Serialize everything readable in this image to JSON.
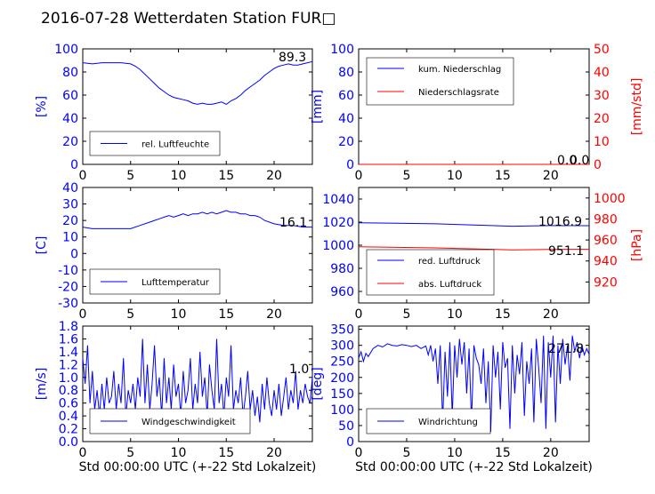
{
  "title": "2016-07-28 Wetterdaten Station FUR□",
  "colors": {
    "primary": "#0000ff",
    "secondary": "#ff0000",
    "black": "#000000"
  },
  "chart_data": [
    {
      "id": "humidity",
      "type": "line",
      "x_ticks": [
        0,
        5,
        10,
        15,
        20
      ],
      "xlim": [
        0,
        24
      ],
      "ylabel": "[%]",
      "ylim": [
        0,
        100
      ],
      "yticks": [
        0,
        20,
        40,
        60,
        80,
        100
      ],
      "grid": false,
      "legend": "bottom-left",
      "series": [
        {
          "name": "rel. Luftfeuchte",
          "color": "#0000ff",
          "x": [
            0,
            1,
            2,
            3,
            4,
            5,
            5.5,
            6,
            6.5,
            7,
            7.5,
            8,
            8.5,
            9,
            9.5,
            10,
            10.5,
            11,
            11.5,
            12,
            12.5,
            13,
            13.5,
            14,
            14.5,
            15,
            15.5,
            16,
            16.5,
            17,
            17.5,
            18,
            18.5,
            19,
            19.5,
            20,
            20.5,
            21,
            21.5,
            22,
            22.5,
            23,
            23.5,
            24
          ],
          "y": [
            88,
            87,
            88,
            88,
            88,
            87,
            85,
            82,
            78,
            74,
            70,
            66,
            63,
            60,
            58,
            57,
            56,
            55,
            53,
            52,
            53,
            52,
            52,
            53,
            54,
            52,
            55,
            57,
            60,
            64,
            67,
            70,
            73,
            77,
            80,
            83,
            85,
            86,
            87,
            86,
            86,
            87,
            88,
            89
          ]
        }
      ],
      "value_label": "89.3"
    },
    {
      "id": "precipitation",
      "type": "line",
      "x_ticks": [
        0,
        5,
        10,
        15,
        20
      ],
      "xlim": [
        0,
        24
      ],
      "ylabel": "[mm]",
      "ylim": [
        0,
        100
      ],
      "yticks": [
        0,
        20,
        40,
        60,
        80,
        100
      ],
      "ylabel_right": "[mm/std]",
      "ylim_right": [
        0,
        50
      ],
      "yticks_right": [
        0,
        10,
        20,
        30,
        40,
        50
      ],
      "grid": false,
      "legend": "top-left",
      "series": [
        {
          "name": "kum. Niederschlag",
          "color": "#0000ff",
          "axis": "left",
          "x": [
            0,
            24
          ],
          "y": [
            0,
            0
          ]
        },
        {
          "name": "Niederschlagsrate",
          "color": "#ff0000",
          "axis": "right",
          "x": [
            0,
            24
          ],
          "y": [
            0,
            0
          ]
        }
      ],
      "value_label": "0.0",
      "value_label_2": "0.0"
    },
    {
      "id": "temperature",
      "type": "line",
      "x_ticks": [
        0,
        5,
        10,
        15,
        20
      ],
      "xlim": [
        0,
        24
      ],
      "ylabel": "[C]",
      "ylim": [
        -30,
        40
      ],
      "yticks": [
        -30,
        -20,
        -10,
        0,
        10,
        20,
        30,
        40
      ],
      "grid": false,
      "legend": "bottom-left",
      "series": [
        {
          "name": "Lufttemperatur",
          "color": "#0000ff",
          "x": [
            0,
            1,
            2,
            3,
            4,
            5,
            6,
            7,
            7.5,
            8,
            8.5,
            9,
            9.5,
            10,
            10.5,
            11,
            11.5,
            12,
            12.5,
            13,
            13.5,
            14,
            14.5,
            15,
            15.5,
            16,
            16.5,
            17,
            17.5,
            18,
            18.5,
            19,
            20,
            21,
            22,
            23,
            24
          ],
          "y": [
            16,
            15,
            15,
            15,
            15,
            15,
            17,
            19,
            20,
            21,
            22,
            23,
            22,
            23,
            24,
            23,
            24,
            24,
            25,
            24,
            25,
            24,
            25,
            26,
            25,
            25,
            24,
            24,
            23,
            23,
            22,
            20,
            18,
            17,
            17,
            16,
            16
          ]
        }
      ],
      "value_label": "16.1"
    },
    {
      "id": "pressure",
      "type": "line",
      "x_ticks": [
        0,
        5,
        10,
        15,
        20
      ],
      "xlim": [
        0,
        24
      ],
      "ylim": [
        950,
        1050
      ],
      "yticks": [
        960,
        980,
        1000,
        1020,
        1040
      ],
      "ylabel_right": "[hPa]",
      "ylim_right": [
        900,
        1010
      ],
      "yticks_right": [
        920,
        940,
        960,
        980,
        1000
      ],
      "grid": false,
      "legend": "bottom-left",
      "series": [
        {
          "name": "red. Luftdruck",
          "color": "#0000ff",
          "axis": "left",
          "x": [
            0,
            4,
            8,
            12,
            16,
            20,
            24
          ],
          "y": [
            1019.5,
            1019,
            1018.5,
            1017.5,
            1016.5,
            1017,
            1016.9
          ]
        },
        {
          "name": "abs. Luftdruck",
          "color": "#ff0000",
          "axis": "right",
          "x": [
            0,
            4,
            8,
            12,
            16,
            20,
            24
          ],
          "y": [
            953.5,
            953,
            952.5,
            951.5,
            950.5,
            951,
            951.1
          ]
        }
      ],
      "value_label": "1016.9",
      "value_label_2": "951.1"
    },
    {
      "id": "wind-speed",
      "type": "line",
      "x_ticks": [
        0,
        5,
        10,
        15,
        20
      ],
      "xlim": [
        0,
        24
      ],
      "xlabel": "Std 00:00:00 UTC (+-22 Std Lokalzeit)",
      "ylabel": "[m/s]",
      "ylim": [
        0,
        1.8
      ],
      "yticks": [
        "0.0",
        "0.2",
        "0.4",
        "0.6",
        "0.8",
        "1.0",
        "1.2",
        "1.4",
        "1.6",
        "1.8"
      ],
      "grid": false,
      "legend": "bottom-left",
      "series": [
        {
          "name": "Windgeschwindigkeit",
          "color": "#0000ff",
          "x": [
            0,
            0.25,
            0.5,
            0.75,
            1,
            1.25,
            1.5,
            1.75,
            2,
            2.25,
            2.5,
            2.75,
            3,
            3.25,
            3.5,
            3.75,
            4,
            4.25,
            4.5,
            4.75,
            5,
            5.25,
            5.5,
            5.75,
            6,
            6.25,
            6.5,
            6.75,
            7,
            7.25,
            7.5,
            7.75,
            8,
            8.25,
            8.5,
            8.75,
            9,
            9.25,
            9.5,
            9.75,
            10,
            10.25,
            10.5,
            10.75,
            11,
            11.25,
            11.5,
            11.75,
            12,
            12.25,
            12.5,
            12.75,
            13,
            13.25,
            13.5,
            13.75,
            14,
            14.25,
            14.5,
            14.75,
            15,
            15.25,
            15.5,
            15.75,
            16,
            16.25,
            16.5,
            16.75,
            17,
            17.25,
            17.5,
            17.75,
            18,
            18.25,
            18.5,
            18.75,
            19,
            19.25,
            19.5,
            19.75,
            20,
            20.25,
            20.5,
            20.75,
            21,
            21.25,
            21.5,
            21.75,
            22,
            22.25,
            22.5,
            22.75,
            23,
            23.25,
            23.5,
            23.75,
            24
          ],
          "y": [
            1.3,
            0.9,
            1.5,
            0.6,
            1.1,
            0.5,
            0.8,
            0.4,
            0.9,
            0.5,
            1.0,
            0.6,
            0.7,
            1.1,
            0.5,
            0.9,
            0.6,
            1.3,
            0.4,
            0.8,
            0.6,
            0.9,
            0.5,
            1.0,
            0.7,
            1.6,
            0.6,
            1.2,
            0.5,
            0.9,
            1.5,
            0.7,
            1.0,
            0.4,
            1.3,
            0.6,
            1.0,
            0.5,
            1.2,
            0.7,
            0.9,
            0.4,
            1.1,
            0.6,
            0.8,
            1.3,
            0.5,
            0.9,
            0.6,
            1.4,
            0.7,
            1.0,
            0.4,
            1.2,
            0.8,
            0.5,
            1.6,
            0.6,
            0.9,
            0.4,
            1.0,
            0.7,
            1.5,
            0.5,
            0.8,
            0.6,
            1.0,
            0.4,
            0.7,
            1.1,
            0.5,
            0.8,
            0.4,
            0.7,
            0.3,
            0.9,
            0.5,
            1.0,
            0.6,
            0.4,
            0.8,
            0.5,
            0.9,
            0.4,
            0.7,
            1.0,
            0.5,
            0.8,
            0.6,
            1.1,
            0.5,
            0.8,
            0.6,
            0.9,
            0.7,
            0.6,
            1.0
          ]
        }
      ],
      "value_label": "1.0"
    },
    {
      "id": "wind-direction",
      "type": "line",
      "x_ticks": [
        0,
        5,
        10,
        15,
        20
      ],
      "xlim": [
        0,
        24
      ],
      "xlabel": "Std 00:00:00 UTC (+-22 Std Lokalzeit)",
      "ylabel": "[deg]",
      "ylim": [
        0,
        360
      ],
      "yticks": [
        0,
        50,
        100,
        150,
        200,
        250,
        300,
        350
      ],
      "grid": false,
      "legend": "bottom-left",
      "series": [
        {
          "name": "Windrichtung",
          "color": "#0000ff",
          "x": [
            0,
            0.25,
            0.5,
            0.75,
            1,
            1.5,
            2,
            2.5,
            3,
            3.5,
            4,
            4.5,
            5,
            5.5,
            6,
            6.5,
            7,
            7.25,
            7.5,
            7.75,
            8,
            8.25,
            8.5,
            8.75,
            9,
            9.25,
            9.5,
            9.75,
            10,
            10.25,
            10.5,
            10.75,
            11,
            11.25,
            11.5,
            11.75,
            12,
            12.25,
            12.5,
            12.75,
            13,
            13.25,
            13.5,
            13.75,
            14,
            14.25,
            14.5,
            14.75,
            15,
            15.25,
            15.5,
            15.75,
            16,
            16.25,
            16.5,
            16.75,
            17,
            17.25,
            17.5,
            17.75,
            18,
            18.25,
            18.5,
            18.75,
            19,
            19.25,
            19.5,
            19.75,
            20,
            20.25,
            20.5,
            20.75,
            21,
            21.25,
            21.5,
            21.75,
            22,
            22.25,
            22.5,
            22.75,
            23,
            23.25,
            23.5,
            23.75,
            24
          ],
          "y": [
            260,
            280,
            250,
            275,
            265,
            290,
            300,
            295,
            305,
            300,
            298,
            302,
            300,
            296,
            300,
            290,
            298,
            270,
            300,
            250,
            290,
            180,
            300,
            60,
            280,
            140,
            310,
            80,
            300,
            200,
            320,
            240,
            310,
            150,
            290,
            60,
            300,
            260,
            240,
            180,
            290,
            120,
            250,
            30,
            300,
            200,
            280,
            100,
            310,
            230,
            260,
            40,
            300,
            150,
            270,
            210,
            310,
            80,
            250,
            180,
            290,
            60,
            320,
            230,
            120,
            330,
            40,
            310,
            200,
            330,
            60,
            300,
            180,
            320,
            240,
            300,
            190,
            330,
            280,
            310,
            260,
            300,
            270,
            290,
            272
          ]
        }
      ],
      "value_label": "271.8"
    }
  ]
}
